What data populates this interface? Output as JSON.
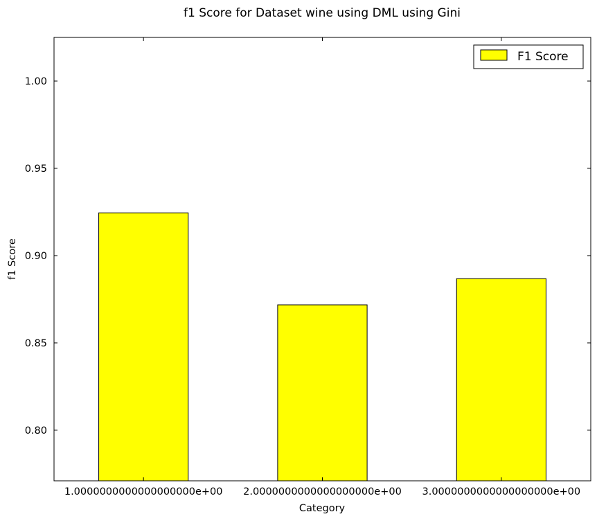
{
  "chart_data": {
    "type": "bar",
    "title": "f1 Score for Dataset wine using DML using Gini",
    "xlabel": "Category",
    "ylabel": "f1 Score",
    "categories": [
      "1.0000000000000000000e+00",
      "2.0000000000000000000e+00",
      "3.0000000000000000000e+00"
    ],
    "series": [
      {
        "name": "F1 Score",
        "values": [
          0.9245,
          0.8718,
          0.8868
        ],
        "color": "#ffff00"
      }
    ],
    "ylim": [
      0.771,
      1.025
    ],
    "yticks": [
      0.8,
      0.85,
      0.9,
      0.95,
      1.0
    ],
    "ytick_labels": [
      "0.80",
      "0.85",
      "0.90",
      "0.95",
      "1.00"
    ],
    "grid": false,
    "legend_position": "top-right"
  }
}
